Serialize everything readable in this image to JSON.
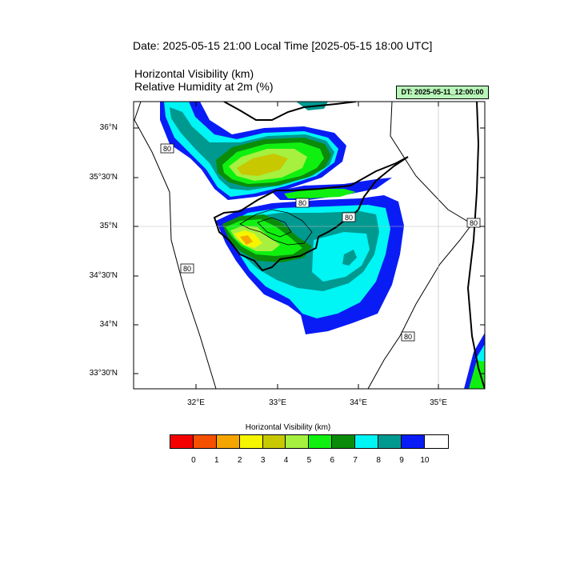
{
  "header": {
    "date_line": "Date: 2025-05-15  21:00 Local Time [2025-05-15  18:00 UTC]",
    "field_1": "Horizontal Visibility   (km)",
    "field_2": "Relative Humidity at 2m   (%)",
    "dt_badge": "DT: 2025-05-11_12:00:00"
  },
  "map": {
    "lat_labels": [
      "36°N",
      "35°30'N",
      "35°N",
      "34°30'N",
      "34°N",
      "33°30'N"
    ],
    "lon_labels": [
      "32°E",
      "33°E",
      "34°E",
      "35°E"
    ],
    "contour_label": "80",
    "colors": {
      "vis_9": "#0a1cf5",
      "vis_8": "#00f5f5",
      "vis_7": "#009990",
      "vis_6": "#0a8c0a",
      "vis_5": "#10f010",
      "vis_4": "#a6f040",
      "vis_3": "#c8c800",
      "vis_2": "#f5f500",
      "vis_1": "#f5a800",
      "vis_0": "#f55a0a"
    }
  },
  "legend": {
    "title": "Horizontal Visibility  (km)",
    "colors": [
      "#f50000",
      "#f55000",
      "#f5a500",
      "#f5f500",
      "#c8c800",
      "#a6f040",
      "#10f010",
      "#0a8c0a",
      "#00f5f5",
      "#009990",
      "#0a1cf5",
      "#ffffff"
    ],
    "ticks": [
      "0",
      "1",
      "2",
      "3",
      "4",
      "5",
      "6",
      "7",
      "8",
      "9",
      "10"
    ]
  }
}
